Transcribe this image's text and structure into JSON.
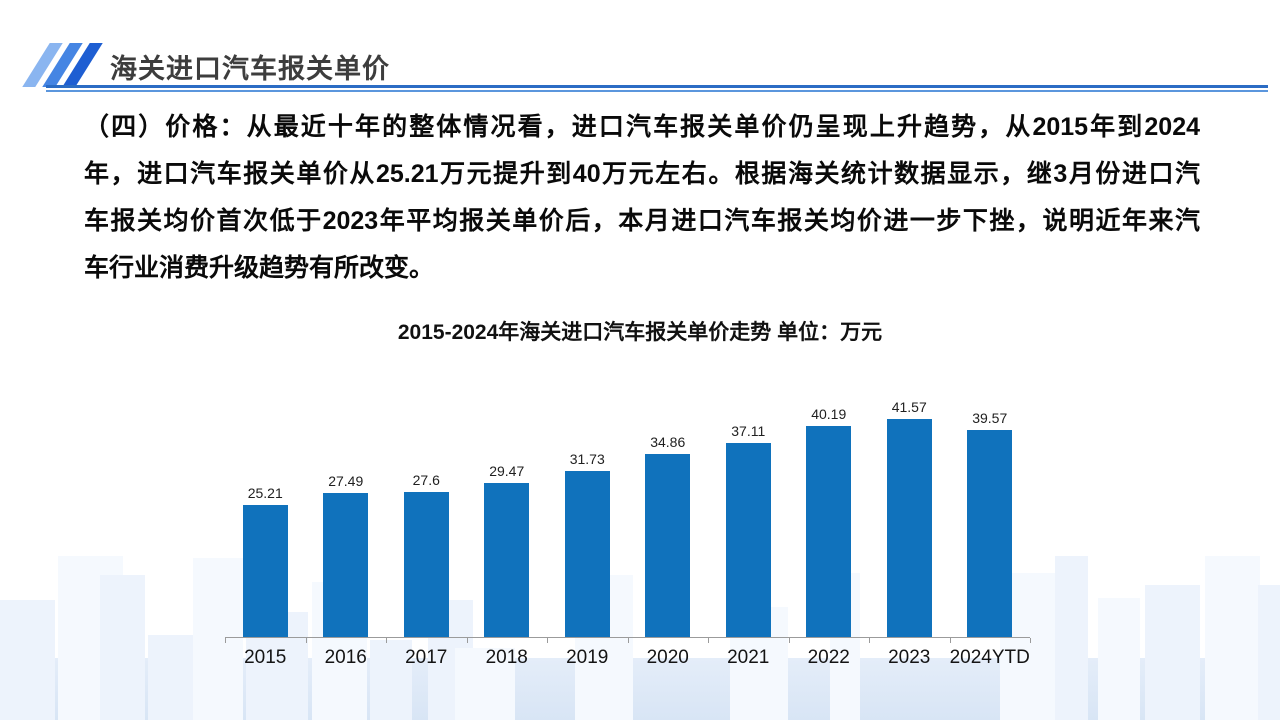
{
  "header": {
    "title": "海关进口汽车报关单价"
  },
  "body": {
    "paragraph_lines": [
      "（四）价格：从最近十年的整体情况看，进口汽车报关单价仍呈现上升趋势，从2015年到2024",
      "年，进口汽车报关单价从25.21万元提升到40万元左右。根据海关统计数据显示，继3月份进口汽",
      "车报关均价首次低于2023年平均报关单价后，本月进口汽车报关均价进一步下挫，说明近年来汽",
      "车行业消费升级趋势有所改变。"
    ]
  },
  "chart_data": {
    "type": "bar",
    "title": "2015-2024年海关进口汽车报关单价走势 单位：万元",
    "unit": "万元",
    "categories": [
      "2015",
      "2016",
      "2017",
      "2018",
      "2019",
      "2020",
      "2021",
      "2022",
      "2023",
      "2024YTD"
    ],
    "values": [
      25.21,
      27.49,
      27.6,
      29.47,
      31.73,
      34.86,
      37.11,
      40.19,
      41.57,
      39.57
    ],
    "bar_color": "#1072BC",
    "data_labels": true,
    "grid": false,
    "legend_position": "none",
    "y_axis_visible": false
  }
}
